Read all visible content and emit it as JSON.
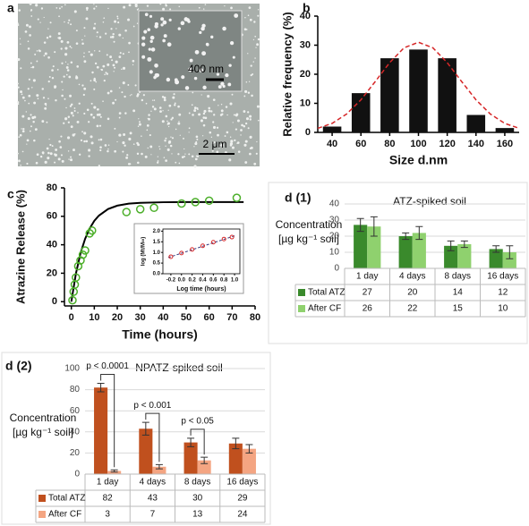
{
  "panel_a": {
    "label": "a",
    "inset_scale_bar": "400 nm",
    "scale_bar": "2 μm"
  },
  "chart_data": [
    {
      "type": "bar",
      "panel": "b",
      "xlabel": "Size d.nm",
      "ylabel": "Relative frequency (%)",
      "categories": [
        "40",
        "60",
        "80",
        "100",
        "120",
        "140",
        "160"
      ],
      "values": [
        2,
        13.5,
        25.5,
        28.5,
        25.5,
        6,
        1.5
      ],
      "color": "#111111",
      "ylim": [
        0,
        40
      ],
      "yticks": [
        0,
        10,
        20,
        30,
        40
      ],
      "fit": {
        "color": "#d62728",
        "x": [
          30,
          40,
          50,
          60,
          70,
          80,
          90,
          100,
          110,
          120,
          130,
          140,
          150,
          160,
          170
        ],
        "values": [
          1.4,
          3.1,
          6.3,
          11.2,
          17.5,
          24,
          29.1,
          31,
          29.1,
          24,
          17.5,
          11.2,
          6.3,
          3.1,
          1.4
        ]
      }
    },
    {
      "type": "scatter",
      "panel": "c",
      "xlabel": "Time (hours)",
      "ylabel": "Atrazine Release (%)",
      "x": [
        0.5,
        1,
        1.5,
        2,
        3,
        4,
        5,
        6,
        8,
        9,
        24,
        30,
        36,
        48,
        54,
        60,
        72
      ],
      "values": [
        1,
        7,
        12,
        17,
        25,
        29,
        33,
        36,
        48,
        50,
        63,
        65,
        66,
        69,
        70,
        71,
        73
      ],
      "color": "#4caf2a",
      "xlim": [
        -3,
        80
      ],
      "xticks": [
        0,
        10,
        20,
        30,
        40,
        50,
        60,
        70,
        80
      ],
      "ylim": [
        -3,
        80
      ],
      "yticks": [
        0,
        20,
        40,
        60,
        80
      ],
      "fit": {
        "color": "#000000",
        "x": [
          0,
          2,
          4,
          6,
          8,
          10,
          12,
          16,
          20,
          25,
          30,
          40,
          50,
          60,
          70,
          75
        ],
        "values": [
          0,
          19.8,
          34.1,
          44.2,
          51.5,
          56.8,
          60.5,
          65.1,
          67.5,
          68.9,
          69.5,
          69.9,
          70,
          70,
          70,
          70
        ]
      },
      "inset": {
        "xlabel": "Log time (hours)",
        "ylabel": "log (Mt/M∞)",
        "color": "#d62728",
        "x": [
          -0.2,
          0,
          0.2,
          0.4,
          0.6,
          0.8,
          0.95
        ],
        "values": [
          0.8,
          0.97,
          1.14,
          1.31,
          1.48,
          1.63,
          1.72
        ],
        "xlim": [
          -0.35,
          1.1
        ],
        "xticks": [
          -0.2,
          {
            "value": 0,
            "label": "0.0"
          },
          0.2,
          0.4,
          0.6,
          0.8,
          {
            "value": 1,
            "label": "1.0"
          }
        ],
        "ylim": [
          0,
          2.1
        ],
        "yticks": [
          {
            "value": 0,
            "label": "0.0"
          },
          0.5,
          {
            "value": 1,
            "label": "1.0"
          },
          1.5,
          {
            "value": 2,
            "label": "2.0"
          }
        ],
        "fit": {
          "color": "#333a80",
          "x": [
            -0.25,
            1.0
          ],
          "values": [
            0.76,
            1.78
          ]
        }
      }
    },
    {
      "type": "bar",
      "panel": "d (1)",
      "title": "ATZ-spiked soil",
      "ylabel": [
        "Concentration",
        "[µg kg⁻¹ soil]"
      ],
      "categories": [
        "1 day",
        "4 days",
        "8 days",
        "16 days"
      ],
      "series": [
        {
          "name": "Total ATZ",
          "color": "#3a8a2c",
          "values": [
            27,
            20,
            14,
            12
          ],
          "errors": [
            4,
            2,
            3,
            2
          ]
        },
        {
          "name": "After CF",
          "color": "#8fd16e",
          "values": [
            26,
            22,
            15,
            10
          ],
          "errors": [
            6,
            4,
            2,
            4
          ]
        }
      ],
      "ylim": [
        0,
        40
      ],
      "yticks": [
        0,
        10,
        20,
        30,
        40
      ],
      "grid": true
    },
    {
      "type": "bar",
      "panel": "d (2)",
      "title": "NPATZ-spiked soil",
      "ylabel": [
        "Concentration",
        "[µg kg⁻¹ soil]"
      ],
      "categories": [
        "1 day",
        "4 days",
        "8 days",
        "16 days"
      ],
      "series": [
        {
          "name": "Total ATZ",
          "color": "#c0501e",
          "values": [
            82,
            43,
            30,
            29
          ],
          "errors": [
            4,
            6,
            4,
            5
          ]
        },
        {
          "name": "After CF",
          "color": "#f4a582",
          "values": [
            3,
            7,
            13,
            24
          ],
          "errors": [
            1,
            2,
            3,
            4
          ]
        }
      ],
      "annotations": [
        "p < 0.0001",
        "p < 0.001",
        "p < 0.05",
        null
      ],
      "ylim": [
        0,
        100
      ],
      "yticks": [
        0,
        20,
        40,
        60,
        80,
        100
      ],
      "grid": true
    }
  ]
}
